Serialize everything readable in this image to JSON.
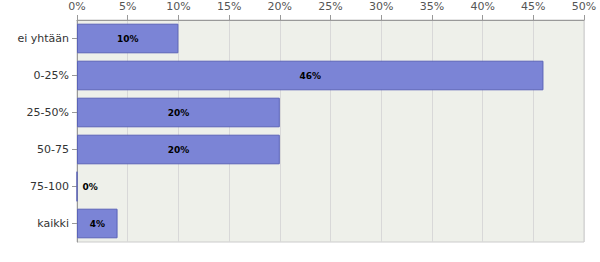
{
  "chart_data": {
    "type": "bar",
    "orientation": "horizontal",
    "categories": [
      "ei yhtään",
      "0-25%",
      "25-50%",
      "50-75",
      "75-100",
      "kaikki"
    ],
    "values": [
      10,
      46,
      20,
      20,
      0,
      4
    ],
    "value_labels": [
      "10%",
      "46%",
      "20%",
      "20%",
      "0%",
      "4%"
    ],
    "color": "#7b84d6",
    "xlim": [
      0,
      50
    ],
    "xticks": [
      {
        "value": 0,
        "label": "0%"
      },
      {
        "value": 5,
        "label": "5%"
      },
      {
        "value": 10,
        "label": "10%"
      },
      {
        "value": 15,
        "label": "15%"
      },
      {
        "value": 20,
        "label": "20%"
      },
      {
        "value": 25,
        "label": "25%"
      },
      {
        "value": 30,
        "label": "30%"
      },
      {
        "value": 35,
        "label": "35%"
      },
      {
        "value": 40,
        "label": "40%"
      },
      {
        "value": 45,
        "label": "45%"
      },
      {
        "value": 50,
        "label": "50%"
      }
    ],
    "grid": true,
    "data_labels": true
  }
}
